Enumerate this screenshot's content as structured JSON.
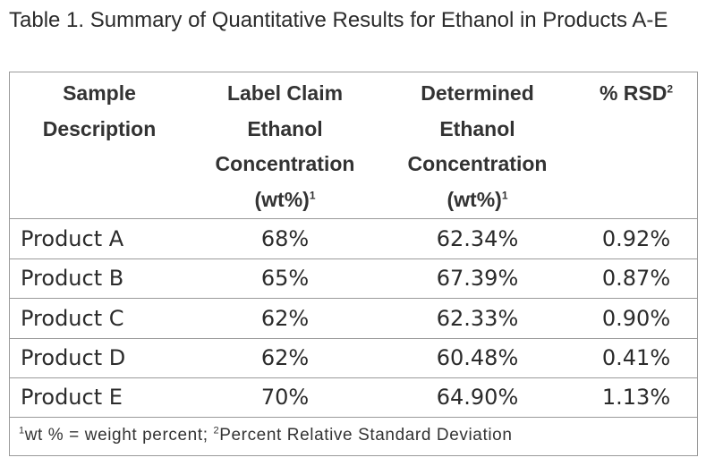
{
  "caption": "Table 1. Summary of Quantitative Results for Ethanol in Products A-E",
  "headers": {
    "col1": [
      "Sample",
      "Description"
    ],
    "col2": [
      "Label Claim",
      "Ethanol",
      "Concentration",
      "(wt%)"
    ],
    "col2_sup": "1",
    "col3": [
      "Determined",
      "Ethanol",
      "Concentration",
      "(wt%)"
    ],
    "col3_sup": "1",
    "col4": "% RSD",
    "col4_sup": "2"
  },
  "rows": [
    {
      "sample": "Product A",
      "label_claim": "68%",
      "determined": "62.34%",
      "rsd": "0.92%"
    },
    {
      "sample": "Product B",
      "label_claim": "65%",
      "determined": "67.39%",
      "rsd": "0.87%"
    },
    {
      "sample": "Product C",
      "label_claim": "62%",
      "determined": "62.33%",
      "rsd": "0.90%"
    },
    {
      "sample": "Product D",
      "label_claim": "62%",
      "determined": "60.48%",
      "rsd": "0.41%"
    },
    {
      "sample": "Product E",
      "label_claim": "70%",
      "determined": "64.90%",
      "rsd": "1.13%"
    }
  ],
  "footnote": {
    "sup1": "1",
    "text1": "wt % = weight percent; ",
    "sup2": "2",
    "text2": "Percent Relative Standard Deviation"
  }
}
